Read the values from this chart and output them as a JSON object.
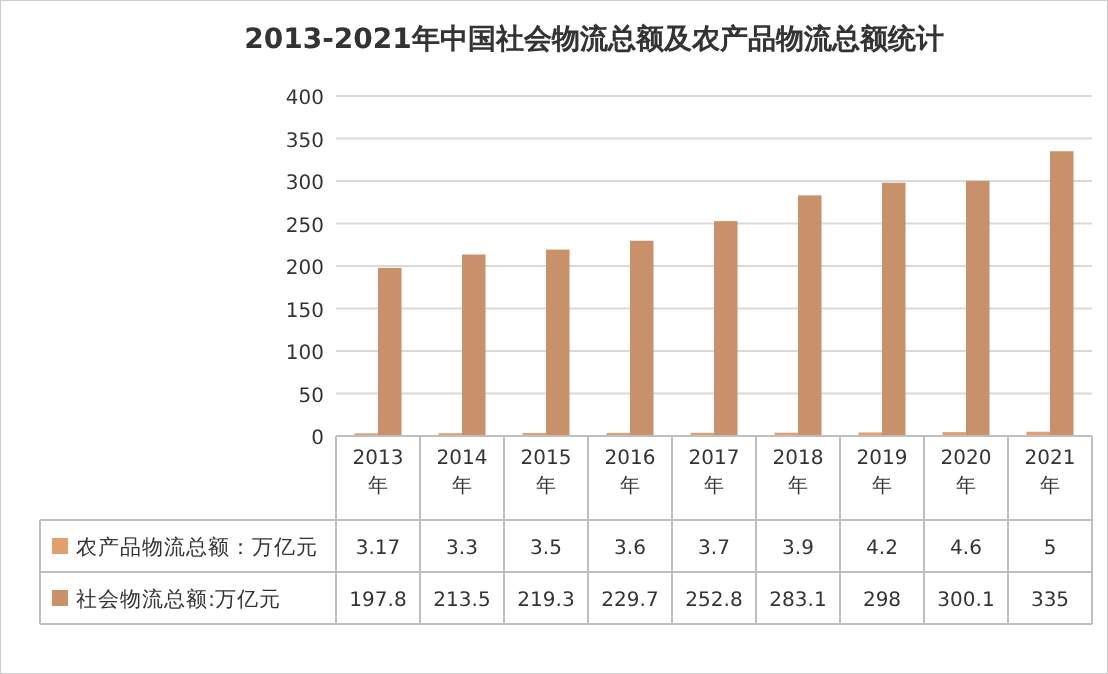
{
  "chart_data": {
    "type": "bar",
    "title": "2013-2021年中国社会物流总额及农产品物流总额统计",
    "categories": [
      "2013年",
      "2014年",
      "2015年",
      "2016年",
      "2017年",
      "2018年",
      "2019年",
      "2020年",
      "2021年"
    ],
    "series": [
      {
        "name": "农产品物流总额：万亿元",
        "color": "#e0a070",
        "values": [
          3.17,
          3.3,
          3.5,
          3.6,
          3.7,
          3.9,
          4.2,
          4.6,
          5
        ]
      },
      {
        "name": "社会物流总额:万亿元",
        "color": "#c8916a",
        "values": [
          197.8,
          213.5,
          219.3,
          229.7,
          252.8,
          283.1,
          298,
          300.1,
          335
        ]
      }
    ],
    "ylim": [
      0,
      400
    ],
    "yticks": [
      0,
      50,
      100,
      150,
      200,
      250,
      300,
      350,
      400
    ],
    "grid": "y",
    "legend": "bottom",
    "data_labels": true
  }
}
